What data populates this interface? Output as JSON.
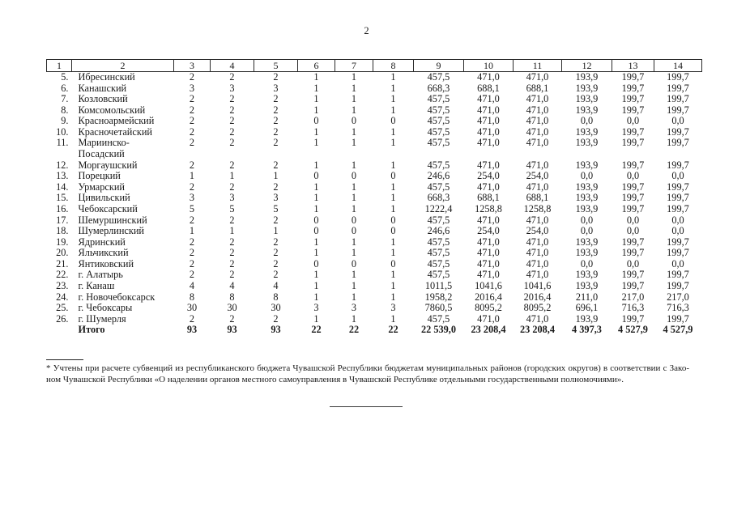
{
  "page": {
    "number": "2"
  },
  "table": {
    "header": [
      "1",
      "2",
      "3",
      "4",
      "5",
      "6",
      "7",
      "8",
      "9",
      "10",
      "11",
      "12",
      "13",
      "14"
    ],
    "rows": [
      {
        "num": "5.",
        "name": "Ибресинский",
        "bold": false,
        "values": [
          "2",
          "2",
          "2",
          "1",
          "1",
          "1",
          "457,5",
          "471,0",
          "471,0",
          "193,9",
          "199,7",
          "199,7"
        ]
      },
      {
        "num": "6.",
        "name": "Канашский",
        "bold": false,
        "values": [
          "3",
          "3",
          "3",
          "1",
          "1",
          "1",
          "668,3",
          "688,1",
          "688,1",
          "193,9",
          "199,7",
          "199,7"
        ]
      },
      {
        "num": "7.",
        "name": "Козловский",
        "bold": false,
        "values": [
          "2",
          "2",
          "2",
          "1",
          "1",
          "1",
          "457,5",
          "471,0",
          "471,0",
          "193,9",
          "199,7",
          "199,7"
        ]
      },
      {
        "num": "8.",
        "name": "Комсомольский",
        "bold": false,
        "values": [
          "2",
          "2",
          "2",
          "1",
          "1",
          "1",
          "457,5",
          "471,0",
          "471,0",
          "193,9",
          "199,7",
          "199,7"
        ]
      },
      {
        "num": "9.",
        "name": "Красноармейский",
        "bold": false,
        "values": [
          "2",
          "2",
          "2",
          "0",
          "0",
          "0",
          "457,5",
          "471,0",
          "471,0",
          "0,0",
          "0,0",
          "0,0"
        ]
      },
      {
        "num": "10.",
        "name": "Красночетайский",
        "bold": false,
        "values": [
          "2",
          "2",
          "2",
          "1",
          "1",
          "1",
          "457,5",
          "471,0",
          "471,0",
          "193,9",
          "199,7",
          "199,7"
        ]
      },
      {
        "num": "11.",
        "name": "Мариинско-\nПосадский",
        "bold": false,
        "values": [
          "2",
          "2",
          "2",
          "1",
          "1",
          "1",
          "457,5",
          "471,0",
          "471,0",
          "193,9",
          "199,7",
          "199,7"
        ]
      },
      {
        "num": "12.",
        "name": "Моргаушский",
        "bold": false,
        "values": [
          "2",
          "2",
          "2",
          "1",
          "1",
          "1",
          "457,5",
          "471,0",
          "471,0",
          "193,9",
          "199,7",
          "199,7"
        ]
      },
      {
        "num": "13.",
        "name": "Порецкий",
        "bold": false,
        "values": [
          "1",
          "1",
          "1",
          "0",
          "0",
          "0",
          "246,6",
          "254,0",
          "254,0",
          "0,0",
          "0,0",
          "0,0"
        ]
      },
      {
        "num": "14.",
        "name": "Урмарский",
        "bold": false,
        "values": [
          "2",
          "2",
          "2",
          "1",
          "1",
          "1",
          "457,5",
          "471,0",
          "471,0",
          "193,9",
          "199,7",
          "199,7"
        ]
      },
      {
        "num": "15.",
        "name": "Цивильский",
        "bold": false,
        "values": [
          "3",
          "3",
          "3",
          "1",
          "1",
          "1",
          "668,3",
          "688,1",
          "688,1",
          "193,9",
          "199,7",
          "199,7"
        ]
      },
      {
        "num": "16.",
        "name": "Чебоксарский",
        "bold": false,
        "values": [
          "5",
          "5",
          "5",
          "1",
          "1",
          "1",
          "1222,4",
          "1258,8",
          "1258,8",
          "193,9",
          "199,7",
          "199,7"
        ]
      },
      {
        "num": "17.",
        "name": "Шемуршинский",
        "bold": false,
        "values": [
          "2",
          "2",
          "2",
          "0",
          "0",
          "0",
          "457,5",
          "471,0",
          "471,0",
          "0,0",
          "0,0",
          "0,0"
        ]
      },
      {
        "num": "18.",
        "name": "Шумерлинский",
        "bold": false,
        "values": [
          "1",
          "1",
          "1",
          "0",
          "0",
          "0",
          "246,6",
          "254,0",
          "254,0",
          "0,0",
          "0,0",
          "0,0"
        ]
      },
      {
        "num": "19.",
        "name": "Ядринский",
        "bold": false,
        "values": [
          "2",
          "2",
          "2",
          "1",
          "1",
          "1",
          "457,5",
          "471,0",
          "471,0",
          "193,9",
          "199,7",
          "199,7"
        ]
      },
      {
        "num": "20.",
        "name": "Яльчикский",
        "bold": false,
        "values": [
          "2",
          "2",
          "2",
          "1",
          "1",
          "1",
          "457,5",
          "471,0",
          "471,0",
          "193,9",
          "199,7",
          "199,7"
        ]
      },
      {
        "num": "21.",
        "name": "Янтиковский",
        "bold": false,
        "values": [
          "2",
          "2",
          "2",
          "0",
          "0",
          "0",
          "457,5",
          "471,0",
          "471,0",
          "0,0",
          "0,0",
          "0,0"
        ]
      },
      {
        "num": "22.",
        "name": "г. Алатырь",
        "bold": false,
        "values": [
          "2",
          "2",
          "2",
          "1",
          "1",
          "1",
          "457,5",
          "471,0",
          "471,0",
          "193,9",
          "199,7",
          "199,7"
        ]
      },
      {
        "num": "23.",
        "name": "г. Канаш",
        "bold": false,
        "values": [
          "4",
          "4",
          "4",
          "1",
          "1",
          "1",
          "1011,5",
          "1041,6",
          "1041,6",
          "193,9",
          "199,7",
          "199,7"
        ]
      },
      {
        "num": "24.",
        "name": "г. Новочебоксарск",
        "bold": false,
        "values": [
          "8",
          "8",
          "8",
          "1",
          "1",
          "1",
          "1958,2",
          "2016,4",
          "2016,4",
          "211,0",
          "217,0",
          "217,0"
        ]
      },
      {
        "num": "25.",
        "name": "г. Чебоксары",
        "bold": false,
        "values": [
          "30",
          "30",
          "30",
          "3",
          "3",
          "3",
          "7860,5",
          "8095,2",
          "8095,2",
          "696,1",
          "716,3",
          "716,3"
        ]
      },
      {
        "num": "26.",
        "name": "г. Шумерля",
        "bold": false,
        "values": [
          "2",
          "2",
          "2",
          "1",
          "1",
          "1",
          "457,5",
          "471,0",
          "471,0",
          "193,9",
          "199,7",
          "199,7"
        ]
      },
      {
        "num": "",
        "name": "Итого",
        "bold": true,
        "values": [
          "93",
          "93",
          "93",
          "22",
          "22",
          "22",
          "22 539,0",
          "23 208,4",
          "23 208,4",
          "4 397,3",
          "4 527,9",
          "4 527,9"
        ]
      }
    ]
  },
  "footnote": {
    "line1": "* Учтены при расчете субвенций из республиканского бюджета Чувашской Республики бюджетам муниципальных районов (городских округов) в соответствии с Зако-",
    "line2": "ном Чувашской Республики «О наделении органов местного самоуправления в Чувашской Республике отдельными государственными полномочиями»."
  }
}
